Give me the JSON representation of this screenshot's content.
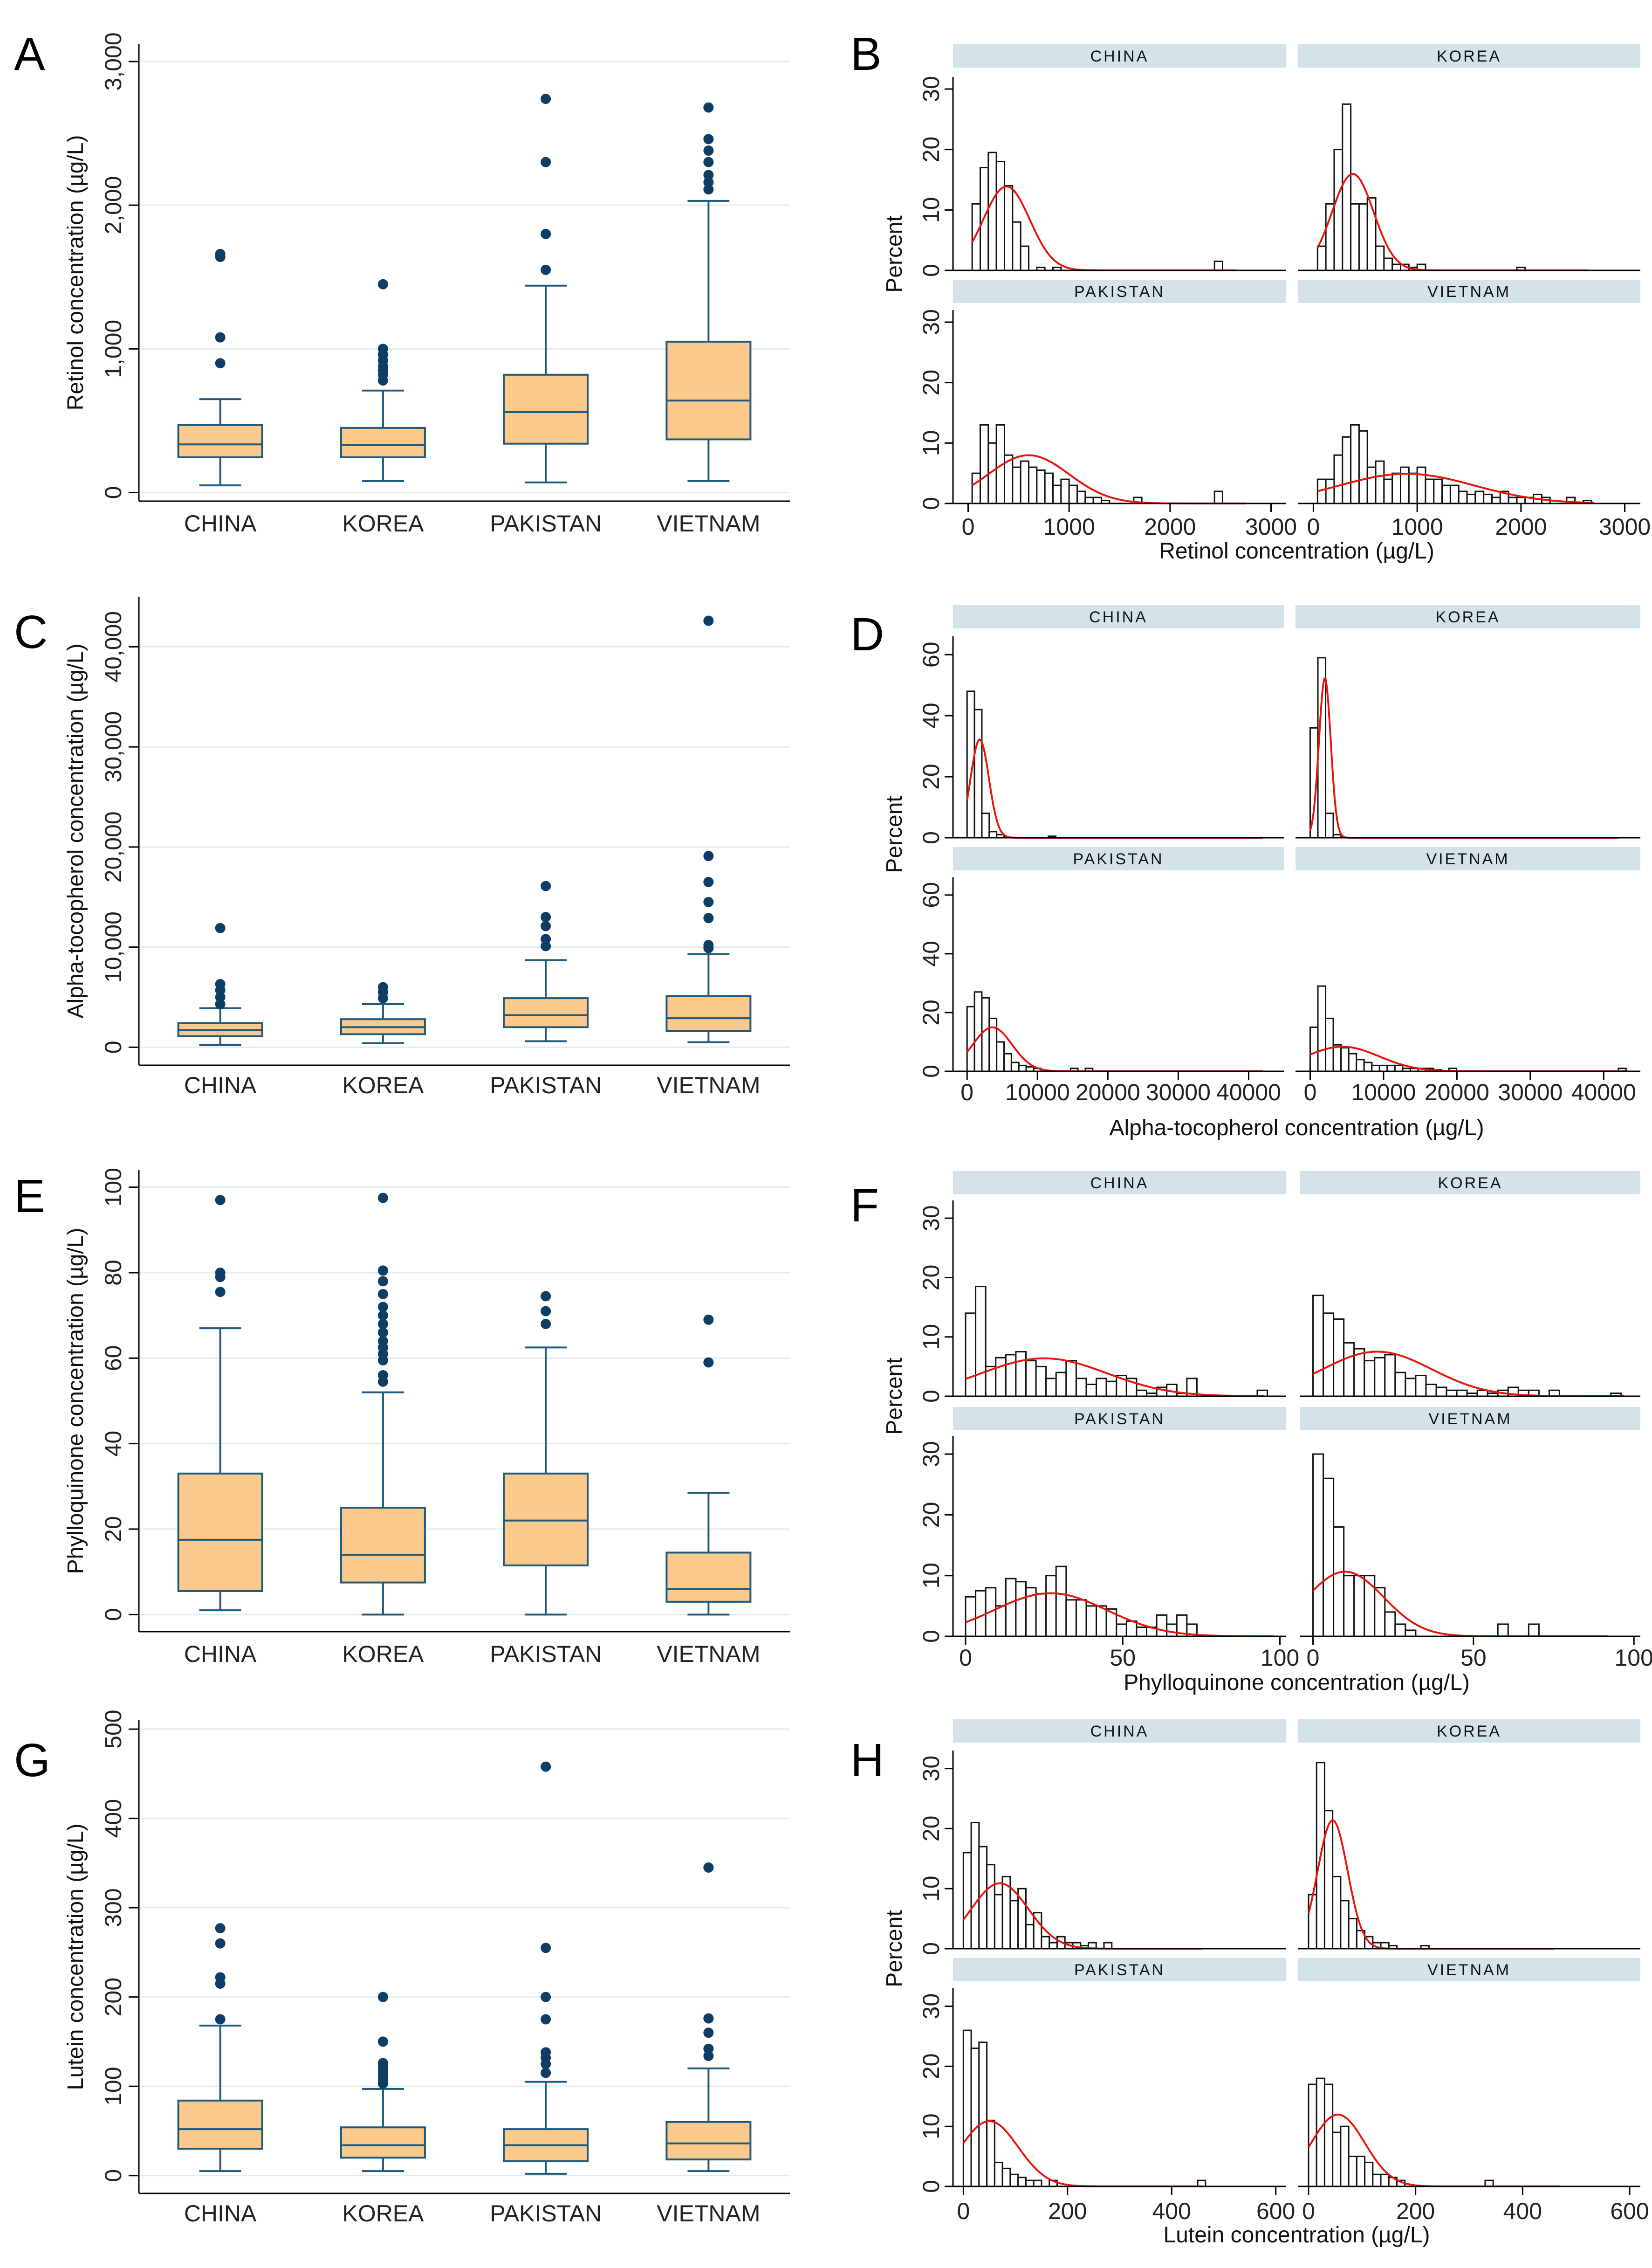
{
  "figure": {
    "panel_letters": [
      "A",
      "B",
      "C",
      "D",
      "E",
      "F",
      "G",
      "H"
    ]
  },
  "colors": {
    "box_fill": "#FBC98B",
    "box_stroke": "#1F5A7A",
    "outlier": "#0E3E66",
    "grid": "#E1ECEC",
    "axis": "#000000",
    "strip_fill": "#D4E3EA",
    "bar_fill": "#FFFFFF",
    "bar_stroke": "#111111",
    "density": "#E8150C"
  },
  "chart_data": [
    {
      "panel": "A",
      "type": "box",
      "ylabel": "Retinol concentration (µg/L)",
      "categories": [
        "CHINA",
        "KOREA",
        "PAKISTAN",
        "VIETNAM"
      ],
      "ylim": [
        -60,
        3120
      ],
      "yticks": [
        0,
        1000,
        2000,
        3000
      ],
      "ytick_labels": [
        "0",
        "1,000",
        "2,000",
        "3,000"
      ],
      "grid": true,
      "boxes": [
        {
          "whisker_low": 50,
          "q1": 245,
          "median": 335,
          "q3": 470,
          "whisker_high": 650,
          "outliers": [
            900,
            1080,
            1640,
            1660
          ]
        },
        {
          "whisker_low": 80,
          "q1": 245,
          "median": 330,
          "q3": 450,
          "whisker_high": 710,
          "outliers": [
            780,
            820,
            850,
            880,
            920,
            960,
            1000,
            1450
          ]
        },
        {
          "whisker_low": 70,
          "q1": 340,
          "median": 560,
          "q3": 820,
          "whisker_high": 1440,
          "outliers": [
            1550,
            1800,
            2300,
            2740
          ]
        },
        {
          "whisker_low": 80,
          "q1": 370,
          "median": 640,
          "q3": 1050,
          "whisker_high": 2030,
          "outliers": [
            2110,
            2160,
            2210,
            2300,
            2380,
            2460,
            2680
          ]
        }
      ]
    },
    {
      "panel": "B",
      "type": "histogram",
      "ylabel": "Percent",
      "xlabel": "Retinol concentration (µg/L)",
      "xlim": [
        -150,
        3150
      ],
      "ylim": [
        0,
        32
      ],
      "xticks": [
        0,
        1000,
        2000,
        3000
      ],
      "xtick_labels": [
        "0",
        "1000",
        "2000",
        "3000"
      ],
      "yticks": [
        0,
        10,
        20,
        30
      ],
      "ytick_labels": [
        "0",
        "10",
        "20",
        "30"
      ],
      "bin_width": 80,
      "facets": [
        {
          "label": "CHINA",
          "bin_start": 40,
          "heights": [
            11,
            17,
            19.5,
            18,
            14,
            8,
            4,
            0,
            0.5,
            0,
            0.5,
            0,
            0,
            0,
            0,
            0,
            0,
            0,
            0,
            0,
            0,
            0,
            0,
            0,
            0,
            0,
            0,
            0,
            0,
            0,
            1.5
          ],
          "curve_mean": 380,
          "curve_sd": 230,
          "curve_max": 2650
        },
        {
          "label": "KOREA",
          "bin_start": 40,
          "heights": [
            4,
            11,
            20,
            27.5,
            11,
            11,
            12,
            4,
            2,
            1,
            1,
            0.5,
            1,
            0,
            0,
            0,
            0,
            0,
            0,
            0,
            0,
            0,
            0,
            0,
            0.5
          ],
          "curve_mean": 380,
          "curve_sd": 200,
          "curve_max": 2650
        },
        {
          "label": "PAKISTAN",
          "bin_start": 40,
          "heights": [
            5,
            13,
            10,
            13,
            8,
            6,
            7,
            6,
            5.5,
            5,
            3,
            4,
            3,
            2,
            1,
            1,
            0.5,
            0,
            0,
            0,
            1,
            0,
            0,
            0,
            0,
            0,
            0,
            0,
            0,
            0,
            2
          ],
          "curve_mean": 600,
          "curve_sd": 400,
          "curve_max": 2750
        },
        {
          "label": "VIETNAM",
          "bin_start": 40,
          "heights": [
            4,
            4,
            8,
            11,
            13,
            12,
            6,
            7,
            4,
            5,
            6,
            5,
            6,
            4,
            4,
            3,
            3,
            2,
            1.5,
            2,
            1.5,
            1,
            2,
            1,
            1,
            1,
            1.5,
            1,
            0,
            0,
            1,
            0,
            0.5
          ],
          "curve_mean": 900,
          "curve_sd": 650,
          "curve_max": 2700
        }
      ]
    },
    {
      "panel": "C",
      "type": "box",
      "ylabel": "Alpha-tocopherol concentration (µg/L)",
      "categories": [
        "CHINA",
        "KOREA",
        "PAKISTAN",
        "VIETNAM"
      ],
      "ylim": [
        -1800,
        45000
      ],
      "yticks": [
        0,
        10000,
        20000,
        30000,
        40000
      ],
      "ytick_labels": [
        "0",
        "10,000",
        "20,000",
        "30,000",
        "40,000"
      ],
      "grid": true,
      "boxes": [
        {
          "whisker_low": 200,
          "q1": 1100,
          "median": 1700,
          "q3": 2400,
          "whisker_high": 3900,
          "outliers": [
            4300,
            5000,
            5700,
            6300,
            11900
          ]
        },
        {
          "whisker_low": 400,
          "q1": 1300,
          "median": 2000,
          "q3": 2800,
          "whisker_high": 4300,
          "outliers": [
            4900,
            5500,
            6000
          ]
        },
        {
          "whisker_low": 600,
          "q1": 2000,
          "median": 3200,
          "q3": 4900,
          "whisker_high": 8700,
          "outliers": [
            10100,
            10800,
            12100,
            13000,
            16100
          ]
        },
        {
          "whisker_low": 500,
          "q1": 1600,
          "median": 2900,
          "q3": 5100,
          "whisker_high": 9300,
          "outliers": [
            9900,
            10200,
            12900,
            14500,
            16500,
            19100,
            42600
          ]
        }
      ]
    },
    {
      "panel": "D",
      "type": "histogram",
      "ylabel": "Percent",
      "xlabel": "Alpha-tocopherol concentration (µg/L)",
      "xlim": [
        -2000,
        45000
      ],
      "ylim": [
        0,
        66
      ],
      "xticks": [
        0,
        10000,
        20000,
        30000,
        40000
      ],
      "xtick_labels": [
        "0",
        "10000",
        "20000",
        "30000",
        "40000"
      ],
      "yticks": [
        0,
        20,
        40,
        60
      ],
      "ytick_labels": [
        "0",
        "20",
        "40",
        "60"
      ],
      "bin_width": 1050,
      "facets": [
        {
          "label": "CHINA",
          "bin_start": 0,
          "heights": [
            48,
            42,
            8,
            2,
            1,
            0,
            0,
            0,
            0,
            0,
            0,
            0.5
          ],
          "curve_mean": 1800,
          "curve_sd": 1300,
          "curve_max": 42000
        },
        {
          "label": "KOREA",
          "bin_start": 0,
          "heights": [
            36,
            59,
            8,
            1
          ],
          "curve_mean": 2000,
          "curve_sd": 800,
          "curve_max": 42000
        },
        {
          "label": "PAKISTAN",
          "bin_start": 0,
          "heights": [
            22,
            27,
            25,
            18,
            10,
            6,
            3,
            2,
            1.5,
            1,
            0,
            0,
            0,
            0,
            1,
            0,
            1
          ],
          "curve_mean": 3600,
          "curve_sd": 2800,
          "curve_max": 42000
        },
        {
          "label": "VIETNAM",
          "bin_start": 0,
          "heights": [
            15,
            29,
            18,
            9,
            8,
            6,
            4,
            3,
            2,
            2,
            2,
            2,
            1,
            1,
            1,
            1,
            0.5,
            0,
            1,
            0,
            0,
            0,
            0,
            0,
            0,
            0,
            0,
            0,
            0,
            0,
            0,
            0,
            0,
            0,
            0,
            0,
            0,
            0,
            0,
            0,
            1
          ],
          "curve_mean": 4400,
          "curve_sd": 5000,
          "curve_max": 43000
        }
      ]
    },
    {
      "panel": "E",
      "type": "box",
      "ylabel": "Phylloquinone concentration (µg/L)",
      "categories": [
        "CHINA",
        "KOREA",
        "PAKISTAN",
        "VIETNAM"
      ],
      "ylim": [
        -4,
        104
      ],
      "yticks": [
        0,
        20,
        40,
        60,
        80,
        100
      ],
      "ytick_labels": [
        "0",
        "20",
        "40",
        "60",
        "80",
        "100"
      ],
      "grid": true,
      "boxes": [
        {
          "whisker_low": 1,
          "q1": 5.5,
          "median": 17.5,
          "q3": 33,
          "whisker_high": 67,
          "outliers": [
            75.5,
            79,
            80,
            97
          ]
        },
        {
          "whisker_low": 0,
          "q1": 7.5,
          "median": 14,
          "q3": 25,
          "whisker_high": 52,
          "outliers": [
            54.5,
            56,
            59.5,
            61,
            62.5,
            64,
            66,
            68,
            70,
            72,
            75,
            78,
            80.5,
            97.5
          ]
        },
        {
          "whisker_low": 0,
          "q1": 11.5,
          "median": 22,
          "q3": 33,
          "whisker_high": 62.5,
          "outliers": [
            68,
            71,
            74.5
          ]
        },
        {
          "whisker_low": 0,
          "q1": 3,
          "median": 6,
          "q3": 14.5,
          "whisker_high": 28.5,
          "outliers": [
            59,
            69
          ]
        }
      ]
    },
    {
      "panel": "F",
      "type": "histogram",
      "ylabel": "Percent",
      "xlabel": "Phylloquinone concentration (µg/L)",
      "xlim": [
        -4,
        102
      ],
      "ylim": [
        0,
        33
      ],
      "xticks": [
        0,
        50,
        100
      ],
      "xtick_labels": [
        "0",
        "50",
        "100"
      ],
      "yticks": [
        0,
        10,
        20,
        30
      ],
      "ytick_labels": [
        "0",
        "10",
        "20",
        "30"
      ],
      "bin_width": 3.2,
      "facets": [
        {
          "label": "CHINA",
          "bin_start": 0,
          "heights": [
            14,
            18.5,
            5,
            6.5,
            7,
            7.5,
            6,
            5,
            3,
            4,
            6,
            3,
            2,
            3,
            2.5,
            3.5,
            3,
            1,
            0.5,
            1.5,
            2,
            0.5,
            3,
            0,
            0,
            0,
            0,
            0,
            0,
            1
          ],
          "curve_mean": 25,
          "curve_sd": 20,
          "curve_max": 95
        },
        {
          "label": "KOREA",
          "bin_start": 0,
          "heights": [
            17,
            14,
            13,
            9,
            8,
            6,
            6.5,
            7,
            4,
            3,
            3.5,
            2,
            1.5,
            1,
            1,
            0.5,
            1,
            0.5,
            1,
            1.5,
            1,
            1,
            0,
            1,
            0,
            0,
            0,
            0,
            0,
            0.5
          ],
          "curve_mean": 20,
          "curve_sd": 17,
          "curve_max": 97
        },
        {
          "label": "PAKISTAN",
          "bin_start": 0,
          "heights": [
            6.5,
            7.5,
            8,
            5,
            9.5,
            9,
            8,
            7,
            10,
            11.5,
            6,
            6,
            5,
            5,
            4.5,
            2,
            2.5,
            1.5,
            1.5,
            3.5,
            2,
            3.5,
            2
          ],
          "curve_mean": 27,
          "curve_sd": 18,
          "curve_max": 98
        },
        {
          "label": "VIETNAM",
          "bin_start": 0,
          "heights": [
            30,
            26,
            18,
            10,
            10,
            10,
            8,
            4,
            2,
            1,
            0,
            0,
            0,
            0,
            0,
            0,
            0,
            0,
            2,
            0,
            0,
            2
          ],
          "curve_mean": 10,
          "curve_sd": 12,
          "curve_max": 92
        }
      ]
    },
    {
      "panel": "G",
      "type": "box",
      "ylabel": "Lutein concentration (µg/L)",
      "categories": [
        "CHINA",
        "KOREA",
        "PAKISTAN",
        "VIETNAM"
      ],
      "ylim": [
        -20,
        510
      ],
      "yticks": [
        0,
        100,
        200,
        300,
        400,
        500
      ],
      "ytick_labels": [
        "0",
        "100",
        "200",
        "300",
        "400",
        "500"
      ],
      "grid": true,
      "boxes": [
        {
          "whisker_low": 5,
          "q1": 30,
          "median": 52,
          "q3": 84,
          "whisker_high": 168,
          "outliers": [
            175,
            215,
            222,
            260,
            277
          ]
        },
        {
          "whisker_low": 5,
          "q1": 20,
          "median": 34,
          "q3": 54,
          "whisker_high": 97,
          "outliers": [
            103,
            107,
            110,
            114,
            118,
            122,
            126,
            150,
            200
          ]
        },
        {
          "whisker_low": 2,
          "q1": 16,
          "median": 34,
          "q3": 52,
          "whisker_high": 105,
          "outliers": [
            115,
            125,
            132,
            138,
            175,
            200,
            255,
            458
          ]
        },
        {
          "whisker_low": 5,
          "q1": 18,
          "median": 36,
          "q3": 60,
          "whisker_high": 120,
          "outliers": [
            134,
            142,
            160,
            176,
            345
          ]
        }
      ]
    },
    {
      "panel": "H",
      "type": "histogram",
      "ylabel": "Percent",
      "xlabel": "Lutein concentration (µg/L)",
      "xlim": [
        -20,
        620
      ],
      "ylim": [
        0,
        33
      ],
      "xticks": [
        0,
        200,
        400,
        600
      ],
      "xtick_labels": [
        "0",
        "200",
        "400",
        "600"
      ],
      "yticks": [
        0,
        10,
        20,
        30
      ],
      "ytick_labels": [
        "0",
        "10",
        "20",
        "30"
      ],
      "bin_width": 15,
      "facets": [
        {
          "label": "CHINA",
          "bin_start": 0,
          "heights": [
            16,
            21,
            17,
            14,
            9,
            12,
            8,
            10,
            4,
            6,
            2,
            1,
            2,
            1,
            1,
            0.5,
            1,
            0,
            1
          ],
          "curve_mean": 70,
          "curve_sd": 55,
          "curve_max": 460
        },
        {
          "label": "KOREA",
          "bin_start": 0,
          "heights": [
            9,
            31,
            23,
            12,
            8,
            5,
            3,
            2,
            1,
            1,
            0.5,
            0,
            0,
            0,
            0.5
          ],
          "curve_mean": 45,
          "curve_sd": 28,
          "curve_max": 460
        },
        {
          "label": "PAKISTAN",
          "bin_start": 0,
          "heights": [
            26,
            23,
            24,
            11,
            4,
            3,
            2,
            1.5,
            1,
            1,
            0,
            1,
            0,
            0,
            0,
            0,
            0,
            0,
            0,
            0,
            0,
            0,
            0,
            0,
            0,
            0,
            0,
            0,
            0,
            0,
            1
          ],
          "curve_mean": 50,
          "curve_sd": 55,
          "curve_max": 460
        },
        {
          "label": "VIETNAM",
          "bin_start": 0,
          "heights": [
            17,
            18,
            17,
            9,
            10,
            5,
            5,
            4,
            2,
            2,
            1.5,
            1,
            0,
            0,
            0,
            0,
            0,
            0,
            0,
            0,
            0,
            0,
            1
          ],
          "curve_mean": 55,
          "curve_sd": 50,
          "curve_max": 470
        }
      ]
    }
  ]
}
